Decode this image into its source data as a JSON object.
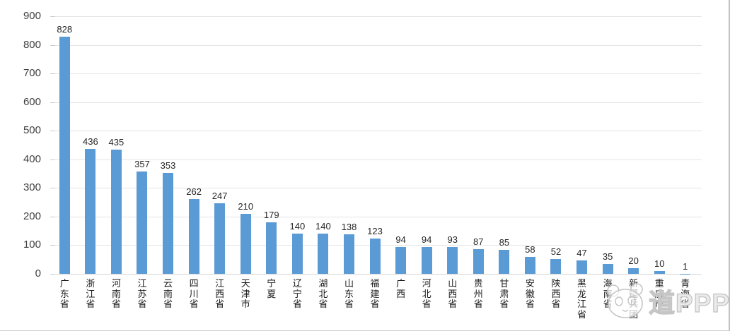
{
  "chart_data": {
    "type": "bar",
    "title": "",
    "xlabel": "",
    "ylabel": "",
    "categories": [
      "广东省",
      "浙江省",
      "河南省",
      "江苏省",
      "云南省",
      "四川省",
      "江西省",
      "天津市",
      "宁夏",
      "辽宁省",
      "湖北省",
      "山东省",
      "福建省",
      "广西",
      "河北省",
      "山西省",
      "贵州省",
      "甘肃省",
      "安徽省",
      "陕西省",
      "黑龙江省",
      "海南省",
      "新疆兵团",
      "重庆市",
      "青海省"
    ],
    "values": [
      828,
      436,
      435,
      357,
      353,
      262,
      247,
      210,
      179,
      140,
      140,
      138,
      123,
      94,
      94,
      93,
      87,
      85,
      58,
      52,
      47,
      35,
      20,
      10,
      1
    ],
    "ylim": [
      0,
      900
    ],
    "yticks": [
      0,
      100,
      200,
      300,
      400,
      500,
      600,
      700,
      800,
      900
    ],
    "grid": true,
    "legend": "none",
    "value_labels": true
  },
  "style": {
    "bar_color": "#5B9BD5",
    "grid_color": "#e4e4e4",
    "axis_text_color": "#3f3f3f",
    "value_label_color": "#262626",
    "watermark_color": "#c5c5c5"
  },
  "watermark": {
    "logo": "panda-face",
    "text": "道PPP"
  }
}
